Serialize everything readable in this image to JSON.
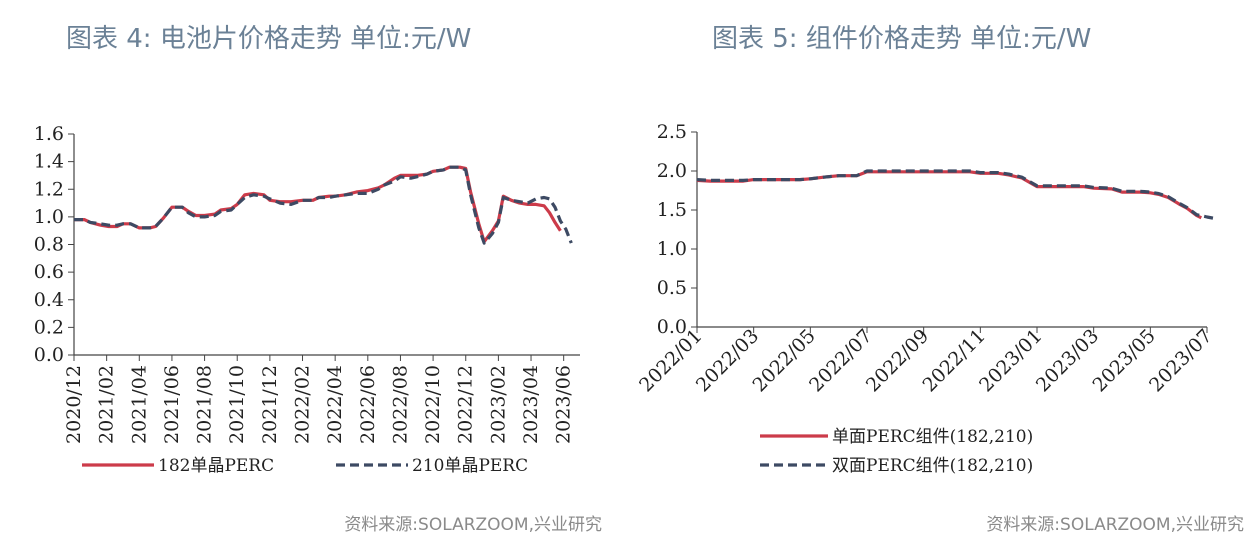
{
  "left": {
    "title": "图表 4:  电池片价格走势  单位:元/W",
    "source": "资料来源:SOLARZOOM,兴业研究"
  },
  "right": {
    "title": "图表 5:  组件价格走势  单位:元/W",
    "source": "资料来源:SOLARZOOM,兴业研究"
  },
  "colors": {
    "red": "#cc3b4a",
    "navy": "#3d4a63",
    "axis": "#444444"
  },
  "chart_data": [
    {
      "type": "line",
      "title": "图表 4:  电池片价格走势  单位:元/W",
      "ylim": [
        0.0,
        1.6
      ],
      "yticks": [
        "0.0",
        "0.2",
        "0.4",
        "0.6",
        "0.8",
        "1.0",
        "1.2",
        "1.4",
        "1.6"
      ],
      "xlim": [
        "2020-12",
        "2023-07"
      ],
      "xticks": [
        "2020/12",
        "2021/02",
        "2021/04",
        "2021/06",
        "2021/08",
        "2021/10",
        "2021/12",
        "2022/02",
        "2022/04",
        "2022/06",
        "2022/08",
        "2022/10",
        "2022/12",
        "2023/02",
        "2023/04",
        "2023/06"
      ],
      "legend_position": "bottom",
      "series": [
        {
          "name": "182单晶PERC",
          "color": "#cc3b4a",
          "dash": "solid",
          "points": [
            [
              "2020-12-01",
              0.98
            ],
            [
              "2020-12-20",
              0.98
            ],
            [
              "2021-01-01",
              0.96
            ],
            [
              "2021-01-20",
              0.94
            ],
            [
              "2021-02-05",
              0.93
            ],
            [
              "2021-02-20",
              0.93
            ],
            [
              "2021-03-01",
              0.95
            ],
            [
              "2021-03-15",
              0.95
            ],
            [
              "2021-04-01",
              0.92
            ],
            [
              "2021-04-20",
              0.92
            ],
            [
              "2021-05-01",
              0.93
            ],
            [
              "2021-05-15",
              0.99
            ],
            [
              "2021-06-01",
              1.07
            ],
            [
              "2021-06-20",
              1.07
            ],
            [
              "2021-07-01",
              1.04
            ],
            [
              "2021-07-15",
              1.01
            ],
            [
              "2021-08-01",
              1.01
            ],
            [
              "2021-08-20",
              1.02
            ],
            [
              "2021-09-01",
              1.05
            ],
            [
              "2021-09-20",
              1.06
            ],
            [
              "2021-10-01",
              1.09
            ],
            [
              "2021-10-15",
              1.16
            ],
            [
              "2021-11-01",
              1.17
            ],
            [
              "2021-11-20",
              1.16
            ],
            [
              "2021-12-01",
              1.12
            ],
            [
              "2021-12-20",
              1.11
            ],
            [
              "2022-01-10",
              1.11
            ],
            [
              "2022-02-01",
              1.12
            ],
            [
              "2022-02-20",
              1.12
            ],
            [
              "2022-03-01",
              1.14
            ],
            [
              "2022-03-20",
              1.15
            ],
            [
              "2022-04-01",
              1.15
            ],
            [
              "2022-04-20",
              1.16
            ],
            [
              "2022-05-10",
              1.18
            ],
            [
              "2022-06-01",
              1.19
            ],
            [
              "2022-06-20",
              1.21
            ],
            [
              "2022-07-01",
              1.23
            ],
            [
              "2022-07-20",
              1.28
            ],
            [
              "2022-08-01",
              1.3
            ],
            [
              "2022-08-20",
              1.3
            ],
            [
              "2022-09-01",
              1.3
            ],
            [
              "2022-09-20",
              1.31
            ],
            [
              "2022-10-01",
              1.33
            ],
            [
              "2022-10-20",
              1.34
            ],
            [
              "2022-11-01",
              1.36
            ],
            [
              "2022-11-20",
              1.36
            ],
            [
              "2022-12-01",
              1.35
            ],
            [
              "2022-12-10",
              1.18
            ],
            [
              "2022-12-25",
              0.95
            ],
            [
              "2023-01-05",
              0.82
            ],
            [
              "2023-01-20",
              0.9
            ],
            [
              "2023-02-01",
              0.97
            ],
            [
              "2023-02-10",
              1.15
            ],
            [
              "2023-02-25",
              1.12
            ],
            [
              "2023-03-10",
              1.1
            ],
            [
              "2023-03-25",
              1.09
            ],
            [
              "2023-04-10",
              1.09
            ],
            [
              "2023-04-25",
              1.08
            ],
            [
              "2023-05-05",
              1.03
            ],
            [
              "2023-05-15",
              0.96
            ],
            [
              "2023-05-25",
              0.9
            ]
          ]
        },
        {
          "name": "210单晶PERC",
          "color": "#3d4a63",
          "dash": "dashed",
          "points": [
            [
              "2020-12-01",
              0.98
            ],
            [
              "2020-12-20",
              0.98
            ],
            [
              "2021-01-01",
              0.96
            ],
            [
              "2021-01-20",
              0.95
            ],
            [
              "2021-02-05",
              0.94
            ],
            [
              "2021-02-20",
              0.94
            ],
            [
              "2021-03-01",
              0.95
            ],
            [
              "2021-03-15",
              0.95
            ],
            [
              "2021-04-01",
              0.92
            ],
            [
              "2021-04-20",
              0.92
            ],
            [
              "2021-05-01",
              0.93
            ],
            [
              "2021-05-15",
              0.99
            ],
            [
              "2021-06-01",
              1.07
            ],
            [
              "2021-06-20",
              1.07
            ],
            [
              "2021-07-01",
              1.03
            ],
            [
              "2021-07-15",
              1.0
            ],
            [
              "2021-08-01",
              1.0
            ],
            [
              "2021-08-20",
              1.01
            ],
            [
              "2021-09-01",
              1.04
            ],
            [
              "2021-09-20",
              1.05
            ],
            [
              "2021-10-01",
              1.09
            ],
            [
              "2021-10-15",
              1.14
            ],
            [
              "2021-11-01",
              1.16
            ],
            [
              "2021-11-20",
              1.15
            ],
            [
              "2021-12-01",
              1.13
            ],
            [
              "2021-12-20",
              1.1
            ],
            [
              "2022-01-10",
              1.09
            ],
            [
              "2022-02-01",
              1.12
            ],
            [
              "2022-02-20",
              1.12
            ],
            [
              "2022-03-01",
              1.14
            ],
            [
              "2022-03-20",
              1.14
            ],
            [
              "2022-04-01",
              1.15
            ],
            [
              "2022-04-20",
              1.16
            ],
            [
              "2022-05-10",
              1.17
            ],
            [
              "2022-06-01",
              1.17
            ],
            [
              "2022-06-20",
              1.2
            ],
            [
              "2022-07-01",
              1.23
            ],
            [
              "2022-07-20",
              1.26
            ],
            [
              "2022-08-01",
              1.29
            ],
            [
              "2022-08-20",
              1.28
            ],
            [
              "2022-09-01",
              1.29
            ],
            [
              "2022-09-20",
              1.31
            ],
            [
              "2022-10-01",
              1.33
            ],
            [
              "2022-10-20",
              1.34
            ],
            [
              "2022-11-01",
              1.36
            ],
            [
              "2022-11-20",
              1.36
            ],
            [
              "2022-12-01",
              1.34
            ],
            [
              "2022-12-10",
              1.16
            ],
            [
              "2022-12-25",
              0.92
            ],
            [
              "2023-01-05",
              0.81
            ],
            [
              "2023-01-20",
              0.88
            ],
            [
              "2023-02-01",
              0.96
            ],
            [
              "2023-02-10",
              1.14
            ],
            [
              "2023-02-25",
              1.12
            ],
            [
              "2023-03-10",
              1.11
            ],
            [
              "2023-03-25",
              1.1
            ],
            [
              "2023-04-10",
              1.13
            ],
            [
              "2023-04-25",
              1.14
            ],
            [
              "2023-05-05",
              1.13
            ],
            [
              "2023-05-15",
              1.07
            ],
            [
              "2023-05-25",
              0.97
            ],
            [
              "2023-06-05",
              0.91
            ],
            [
              "2023-06-15",
              0.81
            ]
          ]
        }
      ]
    },
    {
      "type": "line",
      "title": "图表 5:  组件价格走势  单位:元/W",
      "ylim": [
        0.0,
        2.5
      ],
      "yticks": [
        "0.0",
        "0.5",
        "1.0",
        "1.5",
        "2.0",
        "2.5"
      ],
      "xlim": [
        "2022-01",
        "2023-07"
      ],
      "xticks": [
        "2022/01",
        "2022/03",
        "2022/05",
        "2022/07",
        "2022/09",
        "2022/11",
        "2023/01",
        "2023/03",
        "2023/05",
        "2023/07"
      ],
      "legend_position": "bottom",
      "series": [
        {
          "name": "单面PERC组件(182,210)",
          "color": "#cc3b4a",
          "dash": "solid",
          "points": [
            [
              "2022-01-01",
              1.88
            ],
            [
              "2022-01-15",
              1.87
            ],
            [
              "2022-02-01",
              1.87
            ],
            [
              "2022-02-20",
              1.87
            ],
            [
              "2022-03-01",
              1.89
            ],
            [
              "2022-03-20",
              1.89
            ],
            [
              "2022-04-01",
              1.89
            ],
            [
              "2022-04-20",
              1.89
            ],
            [
              "2022-05-01",
              1.9
            ],
            [
              "2022-05-15",
              1.92
            ],
            [
              "2022-06-01",
              1.94
            ],
            [
              "2022-06-20",
              1.94
            ],
            [
              "2022-07-01",
              1.99
            ],
            [
              "2022-07-20",
              1.99
            ],
            [
              "2022-08-01",
              1.99
            ],
            [
              "2022-09-01",
              1.99
            ],
            [
              "2022-10-01",
              1.99
            ],
            [
              "2022-10-20",
              1.99
            ],
            [
              "2022-11-01",
              1.97
            ],
            [
              "2022-11-20",
              1.97
            ],
            [
              "2022-12-01",
              1.95
            ],
            [
              "2022-12-15",
              1.91
            ],
            [
              "2023-01-01",
              1.8
            ],
            [
              "2023-01-20",
              1.8
            ],
            [
              "2023-02-01",
              1.8
            ],
            [
              "2023-02-20",
              1.8
            ],
            [
              "2023-03-01",
              1.78
            ],
            [
              "2023-03-20",
              1.77
            ],
            [
              "2023-04-01",
              1.73
            ],
            [
              "2023-04-20",
              1.73
            ],
            [
              "2023-05-01",
              1.72
            ],
            [
              "2023-05-10",
              1.7
            ],
            [
              "2023-05-20",
              1.66
            ],
            [
              "2023-06-01",
              1.58
            ],
            [
              "2023-06-10",
              1.52
            ],
            [
              "2023-06-20",
              1.43
            ],
            [
              "2023-06-25",
              1.4
            ]
          ]
        },
        {
          "name": "双面PERC组件(182,210)",
          "color": "#3d4a63",
          "dash": "dashed",
          "points": [
            [
              "2022-01-01",
              1.89
            ],
            [
              "2022-01-15",
              1.88
            ],
            [
              "2022-02-01",
              1.88
            ],
            [
              "2022-02-20",
              1.88
            ],
            [
              "2022-03-01",
              1.89
            ],
            [
              "2022-03-20",
              1.89
            ],
            [
              "2022-04-01",
              1.89
            ],
            [
              "2022-04-20",
              1.89
            ],
            [
              "2022-05-01",
              1.9
            ],
            [
              "2022-05-15",
              1.92
            ],
            [
              "2022-06-01",
              1.94
            ],
            [
              "2022-06-20",
              1.94
            ],
            [
              "2022-07-01",
              2.0
            ],
            [
              "2022-07-20",
              2.0
            ],
            [
              "2022-08-01",
              2.0
            ],
            [
              "2022-09-01",
              2.0
            ],
            [
              "2022-10-01",
              2.0
            ],
            [
              "2022-10-20",
              2.0
            ],
            [
              "2022-11-01",
              1.98
            ],
            [
              "2022-11-20",
              1.98
            ],
            [
              "2022-12-01",
              1.96
            ],
            [
              "2022-12-15",
              1.92
            ],
            [
              "2023-01-01",
              1.81
            ],
            [
              "2023-01-20",
              1.81
            ],
            [
              "2023-02-01",
              1.81
            ],
            [
              "2023-02-20",
              1.81
            ],
            [
              "2023-03-01",
              1.79
            ],
            [
              "2023-03-20",
              1.78
            ],
            [
              "2023-04-01",
              1.74
            ],
            [
              "2023-04-20",
              1.74
            ],
            [
              "2023-05-01",
              1.73
            ],
            [
              "2023-05-10",
              1.71
            ],
            [
              "2023-05-20",
              1.67
            ],
            [
              "2023-06-01",
              1.59
            ],
            [
              "2023-06-10",
              1.53
            ],
            [
              "2023-06-20",
              1.44
            ],
            [
              "2023-07-01",
              1.41
            ],
            [
              "2023-07-10",
              1.39
            ]
          ]
        }
      ]
    }
  ]
}
